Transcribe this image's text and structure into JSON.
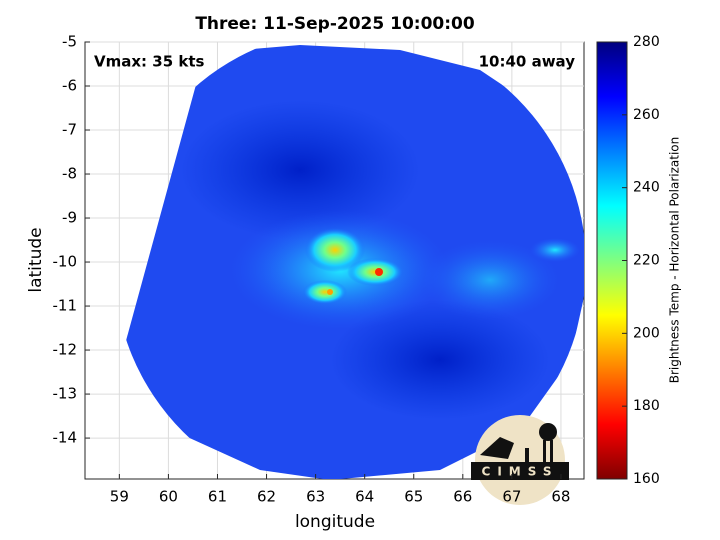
{
  "chart_data": {
    "type": "image",
    "title": "Three: 11-Sep-2025 10:00:00",
    "x_label": "longitude",
    "y_label": "latitude",
    "annotations": [
      "Vmax: 35 kts",
      "10:40 away"
    ],
    "xlim": [
      58.3,
      68.47
    ],
    "xticks": [
      59,
      60,
      61,
      62,
      63,
      64,
      65,
      66,
      67,
      68
    ],
    "ylim": [
      -14.93,
      -5
    ],
    "yticks": [
      -5,
      -6,
      -7,
      -8,
      -9,
      -10,
      -11,
      -12,
      -13,
      -14
    ],
    "grid": true,
    "colorbar": {
      "label": "Brightness Temp - Horizontal Polarization",
      "colormap": "jet",
      "reversed": true,
      "clim": [
        160,
        280
      ],
      "ticks": [
        160,
        180,
        200,
        220,
        240,
        260,
        280
      ]
    },
    "logo_text": "CIMSS"
  }
}
